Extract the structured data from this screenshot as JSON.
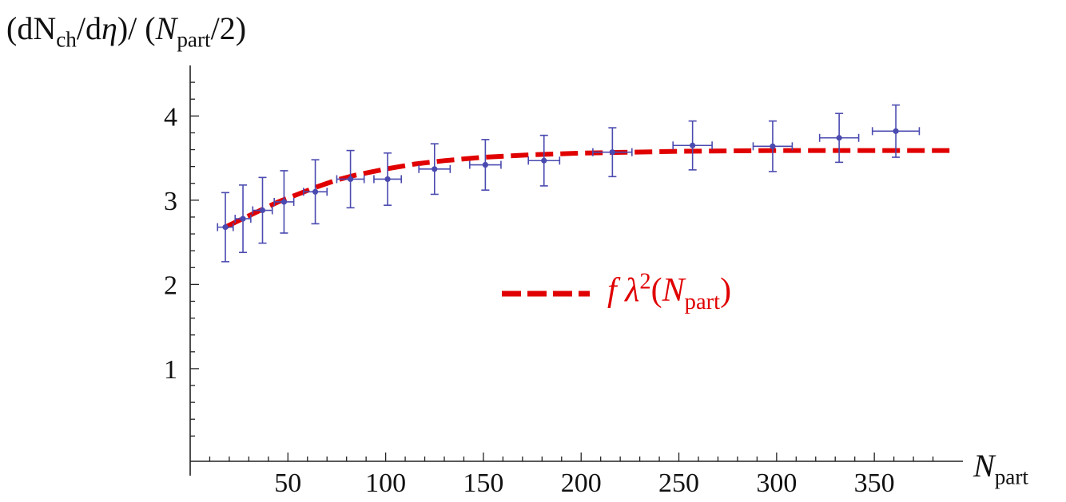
{
  "chart_data": {
    "type": "scatter",
    "ylabel": {
      "open": "(dN",
      "ch": "ch",
      "mid1": "/d",
      "eta": "η",
      "mid2": ")/ (",
      "N": "N",
      "part": "part",
      "close": "/2)"
    },
    "xlabel": {
      "N": "N",
      "sub": "part"
    },
    "xlim": [
      0,
      390
    ],
    "ylim": [
      -0.1,
      4.6
    ],
    "x_ticks": [
      50,
      100,
      150,
      200,
      250,
      300,
      350
    ],
    "y_ticks": [
      1,
      2,
      3,
      4
    ],
    "x_tick_labels": [
      "50",
      "100",
      "150",
      "200",
      "250",
      "300",
      "350"
    ],
    "y_tick_labels": [
      "1",
      "2",
      "3",
      "4"
    ],
    "grid": false,
    "series": [
      {
        "kind": "points",
        "color": "#4a4ab0",
        "points": [
          {
            "x": 18,
            "y": 2.68,
            "xerr": 4,
            "yerr": 0.41
          },
          {
            "x": 27,
            "y": 2.78,
            "xerr": 4,
            "yerr": 0.4
          },
          {
            "x": 37,
            "y": 2.88,
            "xerr": 5,
            "yerr": 0.39
          },
          {
            "x": 48,
            "y": 2.98,
            "xerr": 5,
            "yerr": 0.37
          },
          {
            "x": 64,
            "y": 3.1,
            "xerr": 6,
            "yerr": 0.38
          },
          {
            "x": 82,
            "y": 3.25,
            "xerr": 7,
            "yerr": 0.34
          },
          {
            "x": 101,
            "y": 3.25,
            "xerr": 7,
            "yerr": 0.31
          },
          {
            "x": 125,
            "y": 3.37,
            "xerr": 8,
            "yerr": 0.3
          },
          {
            "x": 151,
            "y": 3.42,
            "xerr": 8,
            "yerr": 0.3
          },
          {
            "x": 181,
            "y": 3.47,
            "xerr": 8,
            "yerr": 0.3
          },
          {
            "x": 216,
            "y": 3.57,
            "xerr": 10,
            "yerr": 0.29
          },
          {
            "x": 257,
            "y": 3.65,
            "xerr": 10,
            "yerr": 0.29
          },
          {
            "x": 298,
            "y": 3.64,
            "xerr": 10,
            "yerr": 0.3
          },
          {
            "x": 332,
            "y": 3.74,
            "xerr": 10,
            "yerr": 0.29
          },
          {
            "x": 361,
            "y": 3.82,
            "xerr": 12,
            "yerr": 0.31
          }
        ]
      },
      {
        "kind": "curve",
        "color": "#e00000",
        "dashed": true,
        "points": [
          [
            18,
            2.68
          ],
          [
            25,
            2.76
          ],
          [
            35,
            2.87
          ],
          [
            45,
            2.98
          ],
          [
            55,
            3.07
          ],
          [
            65,
            3.16
          ],
          [
            75,
            3.24
          ],
          [
            85,
            3.3
          ],
          [
            100,
            3.37
          ],
          [
            115,
            3.43
          ],
          [
            130,
            3.47
          ],
          [
            150,
            3.51
          ],
          [
            175,
            3.54
          ],
          [
            200,
            3.56
          ],
          [
            250,
            3.58
          ],
          [
            300,
            3.59
          ],
          [
            350,
            3.59
          ],
          [
            390,
            3.59
          ]
        ]
      }
    ],
    "legend": {
      "placement": "center-right",
      "color": "#e00000",
      "f": "f",
      "lambda": "λ",
      "sup": "2",
      "open": "(",
      "N": "N",
      "sub": "part",
      "close": ")"
    }
  }
}
